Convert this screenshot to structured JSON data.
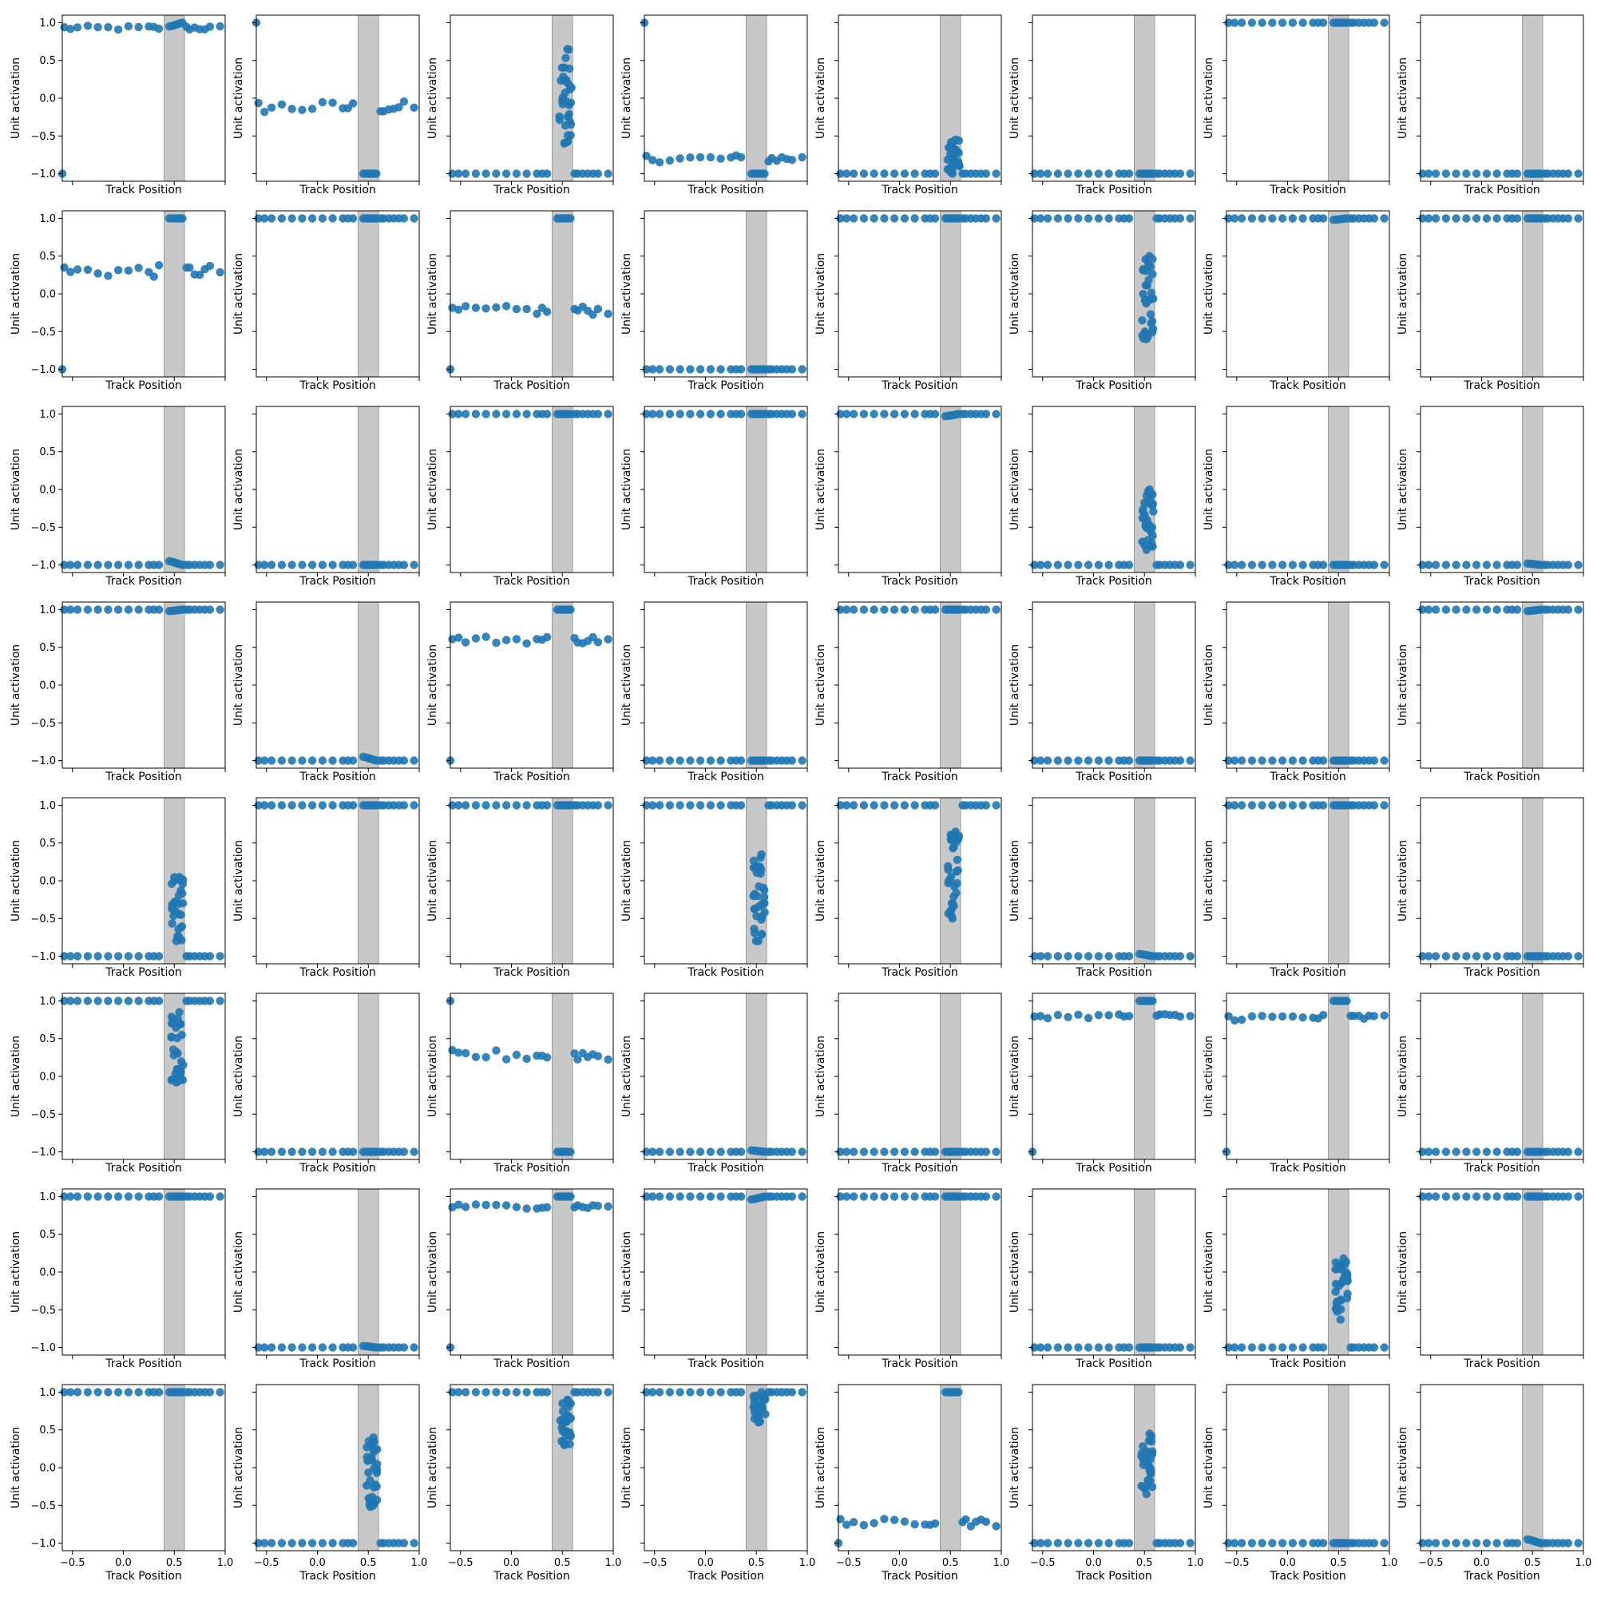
{
  "figure": {
    "rows": 8,
    "cols": 8,
    "shared_x_ticks_bottom_row_only": true,
    "shared_y_ticks_left_col_only": true
  },
  "chart_data": {
    "type": "scatter",
    "xlabel": "Track Position",
    "ylabel": "Unit activation",
    "xlim": [
      -0.6,
      1.0
    ],
    "ylim": [
      -1.1,
      1.1
    ],
    "xticks": [
      -0.5,
      0.0,
      0.5,
      1.0
    ],
    "xtick_labels": [
      "−0.5",
      "0.0",
      "0.5",
      "1.0"
    ],
    "yticks": [
      -1.0,
      -0.5,
      0.0,
      0.5,
      1.0
    ],
    "ytick_labels": [
      "−1.0",
      "−0.5",
      "0.0",
      "0.5",
      "1.0"
    ],
    "shaded_band": {
      "x0": 0.4,
      "x1": 0.6,
      "color": "#c8c8c8"
    },
    "marker_color": "#1f77b4",
    "grid": false,
    "panels": [
      {
        "base": 0.93,
        "jitter": 0.03,
        "start": -1.0,
        "band": "cluster",
        "cluster": [
          0.95,
          1.0
        ]
      },
      {
        "base": -0.12,
        "jitter": 0.08,
        "start": 1.0,
        "band": "cluster",
        "cluster": [
          -1.0,
          -1.0
        ]
      },
      {
        "base": -1.0,
        "jitter": 0.0,
        "band": "spread",
        "spread": [
          -0.6,
          0.65
        ]
      },
      {
        "base": -0.8,
        "jitter": 0.05,
        "start": 1.0,
        "band": "cluster",
        "cluster": [
          -1.0,
          -1.0
        ]
      },
      {
        "base": -1.0,
        "jitter": 0.0,
        "band": "spread",
        "spread": [
          -1.0,
          -0.55
        ]
      },
      {
        "base": -1.0,
        "jitter": 0.0,
        "band": "cluster",
        "cluster": [
          -1.0,
          -1.0
        ]
      },
      {
        "base": 1.0,
        "jitter": 0.0,
        "band": "cluster",
        "cluster": [
          1.0,
          1.0
        ]
      },
      {
        "base": -1.0,
        "jitter": 0.0,
        "band": "cluster",
        "cluster": [
          -1.0,
          -1.0
        ]
      },
      {
        "base": 0.3,
        "jitter": 0.08,
        "start": -1.0,
        "band": "cluster",
        "cluster": [
          1.0,
          1.0
        ]
      },
      {
        "base": 1.0,
        "jitter": 0.0,
        "band": "cluster",
        "cluster": [
          1.0,
          1.0
        ]
      },
      {
        "base": -0.22,
        "jitter": 0.06,
        "start": -1.0,
        "band": "cluster",
        "cluster": [
          1.0,
          1.0
        ]
      },
      {
        "base": -1.0,
        "jitter": 0.0,
        "band": "cluster",
        "cluster": [
          -1.0,
          -1.0
        ]
      },
      {
        "base": 1.0,
        "jitter": 0.0,
        "band": "cluster",
        "cluster": [
          1.0,
          1.0
        ]
      },
      {
        "base": 1.0,
        "jitter": 0.0,
        "band": "spread",
        "spread": [
          -0.6,
          0.5
        ]
      },
      {
        "base": 1.0,
        "jitter": 0.0,
        "band": "cluster",
        "cluster": [
          0.98,
          1.0
        ]
      },
      {
        "base": 1.0,
        "jitter": 0.0,
        "band": "cluster",
        "cluster": [
          1.0,
          1.0
        ]
      },
      {
        "base": -1.0,
        "jitter": 0.0,
        "band": "cluster",
        "cluster": [
          -0.95,
          -1.0
        ]
      },
      {
        "base": -1.0,
        "jitter": 0.0,
        "band": "cluster",
        "cluster": [
          -1.0,
          -1.0
        ]
      },
      {
        "base": 1.0,
        "jitter": 0.0,
        "band": "cluster",
        "cluster": [
          1.0,
          1.0
        ]
      },
      {
        "base": 1.0,
        "jitter": 0.0,
        "band": "cluster",
        "cluster": [
          1.0,
          1.0
        ]
      },
      {
        "base": 1.0,
        "jitter": 0.0,
        "band": "cluster",
        "cluster": [
          0.97,
          1.0
        ]
      },
      {
        "base": -1.0,
        "jitter": 0.0,
        "band": "spread",
        "spread": [
          -0.8,
          0.0
        ]
      },
      {
        "base": -1.0,
        "jitter": 0.0,
        "band": "cluster",
        "cluster": [
          -1.0,
          -1.0
        ]
      },
      {
        "base": -1.0,
        "jitter": 0.0,
        "band": "cluster",
        "cluster": [
          -0.98,
          -1.0
        ]
      },
      {
        "base": 1.0,
        "jitter": 0.0,
        "band": "cluster",
        "cluster": [
          0.98,
          1.0
        ]
      },
      {
        "base": -1.0,
        "jitter": 0.0,
        "band": "cluster",
        "cluster": [
          -0.95,
          -1.0
        ]
      },
      {
        "base": 0.6,
        "jitter": 0.05,
        "start": -1.0,
        "band": "cluster",
        "cluster": [
          1.0,
          1.0
        ]
      },
      {
        "base": -1.0,
        "jitter": 0.0,
        "band": "cluster",
        "cluster": [
          -1.0,
          -1.0
        ]
      },
      {
        "base": 1.0,
        "jitter": 0.0,
        "band": "cluster",
        "cluster": [
          1.0,
          1.0
        ]
      },
      {
        "base": -1.0,
        "jitter": 0.0,
        "band": "cluster",
        "cluster": [
          -1.0,
          -1.0
        ]
      },
      {
        "base": -1.0,
        "jitter": 0.0,
        "band": "cluster",
        "cluster": [
          -1.0,
          -1.0
        ]
      },
      {
        "base": 1.0,
        "jitter": 0.0,
        "band": "cluster",
        "cluster": [
          0.98,
          1.0
        ]
      },
      {
        "base": -1.0,
        "jitter": 0.0,
        "band": "spread",
        "spread": [
          -0.8,
          0.05
        ]
      },
      {
        "base": 1.0,
        "jitter": 0.0,
        "band": "cluster",
        "cluster": [
          1.0,
          1.0
        ]
      },
      {
        "base": 1.0,
        "jitter": 0.0,
        "band": "cluster",
        "cluster": [
          1.0,
          1.0
        ]
      },
      {
        "base": 1.0,
        "jitter": 0.0,
        "band": "spread",
        "spread": [
          -0.8,
          0.35
        ]
      },
      {
        "base": 1.0,
        "jitter": 0.0,
        "band": "spread",
        "spread": [
          -0.5,
          0.65
        ]
      },
      {
        "base": -1.0,
        "jitter": 0.0,
        "band": "cluster",
        "cluster": [
          -0.97,
          -1.0
        ]
      },
      {
        "base": 1.0,
        "jitter": 0.0,
        "band": "cluster",
        "cluster": [
          1.0,
          1.0
        ]
      },
      {
        "base": -1.0,
        "jitter": 0.0,
        "band": "cluster",
        "cluster": [
          -1.0,
          -1.0
        ]
      },
      {
        "base": 1.0,
        "jitter": 0.0,
        "band": "spread",
        "spread": [
          -0.08,
          0.85
        ]
      },
      {
        "base": -1.0,
        "jitter": 0.0,
        "band": "cluster",
        "cluster": [
          -1.0,
          -1.0
        ]
      },
      {
        "base": 0.28,
        "jitter": 0.07,
        "start": 1.0,
        "band": "cluster",
        "cluster": [
          -1.0,
          -1.0
        ]
      },
      {
        "base": -1.0,
        "jitter": 0.0,
        "band": "cluster",
        "cluster": [
          -0.98,
          -1.0
        ]
      },
      {
        "base": -1.0,
        "jitter": 0.0,
        "band": "cluster",
        "cluster": [
          -1.0,
          -1.0
        ]
      },
      {
        "base": 0.8,
        "jitter": 0.03,
        "start": -1.0,
        "band": "cluster",
        "cluster": [
          1.0,
          1.0
        ]
      },
      {
        "base": 0.78,
        "jitter": 0.04,
        "start": -1.0,
        "band": "cluster",
        "cluster": [
          1.0,
          1.0
        ]
      },
      {
        "base": -1.0,
        "jitter": 0.0,
        "band": "cluster",
        "cluster": [
          -1.0,
          -1.0
        ]
      },
      {
        "base": 1.0,
        "jitter": 0.0,
        "band": "cluster",
        "cluster": [
          1.0,
          1.0
        ]
      },
      {
        "base": -1.0,
        "jitter": 0.0,
        "band": "cluster",
        "cluster": [
          -0.98,
          -1.0
        ]
      },
      {
        "base": 0.87,
        "jitter": 0.03,
        "start": -1.0,
        "band": "cluster",
        "cluster": [
          1.0,
          1.0
        ]
      },
      {
        "base": 1.0,
        "jitter": 0.0,
        "band": "cluster",
        "cluster": [
          0.96,
          1.0
        ]
      },
      {
        "base": 1.0,
        "jitter": 0.0,
        "band": "cluster",
        "cluster": [
          1.0,
          1.0
        ]
      },
      {
        "base": -1.0,
        "jitter": 0.0,
        "band": "cluster",
        "cluster": [
          -1.0,
          -1.0
        ]
      },
      {
        "base": -1.0,
        "jitter": 0.0,
        "band": "spread",
        "spread": [
          -0.63,
          0.18
        ]
      },
      {
        "base": 1.0,
        "jitter": 0.0,
        "band": "cluster",
        "cluster": [
          1.0,
          1.0
        ]
      },
      {
        "base": 1.0,
        "jitter": 0.0,
        "band": "cluster",
        "cluster": [
          1.0,
          1.0
        ]
      },
      {
        "base": -1.0,
        "jitter": 0.0,
        "band": "spread",
        "spread": [
          -0.52,
          0.4
        ]
      },
      {
        "base": 1.0,
        "jitter": 0.0,
        "band": "spread",
        "spread": [
          0.3,
          0.9
        ]
      },
      {
        "base": 1.0,
        "jitter": 0.0,
        "band": "spread",
        "spread": [
          0.6,
          1.0
        ]
      },
      {
        "base": -0.73,
        "jitter": 0.05,
        "start": -1.0,
        "band": "cluster",
        "cluster": [
          1.0,
          1.0
        ]
      },
      {
        "base": -1.0,
        "jitter": 0.0,
        "band": "spread",
        "spread": [
          -0.35,
          0.45
        ]
      },
      {
        "base": -1.0,
        "jitter": 0.0,
        "band": "cluster",
        "cluster": [
          -1.0,
          -1.0
        ]
      },
      {
        "base": -1.0,
        "jitter": 0.0,
        "band": "cluster",
        "cluster": [
          -0.95,
          -1.0
        ]
      }
    ]
  }
}
